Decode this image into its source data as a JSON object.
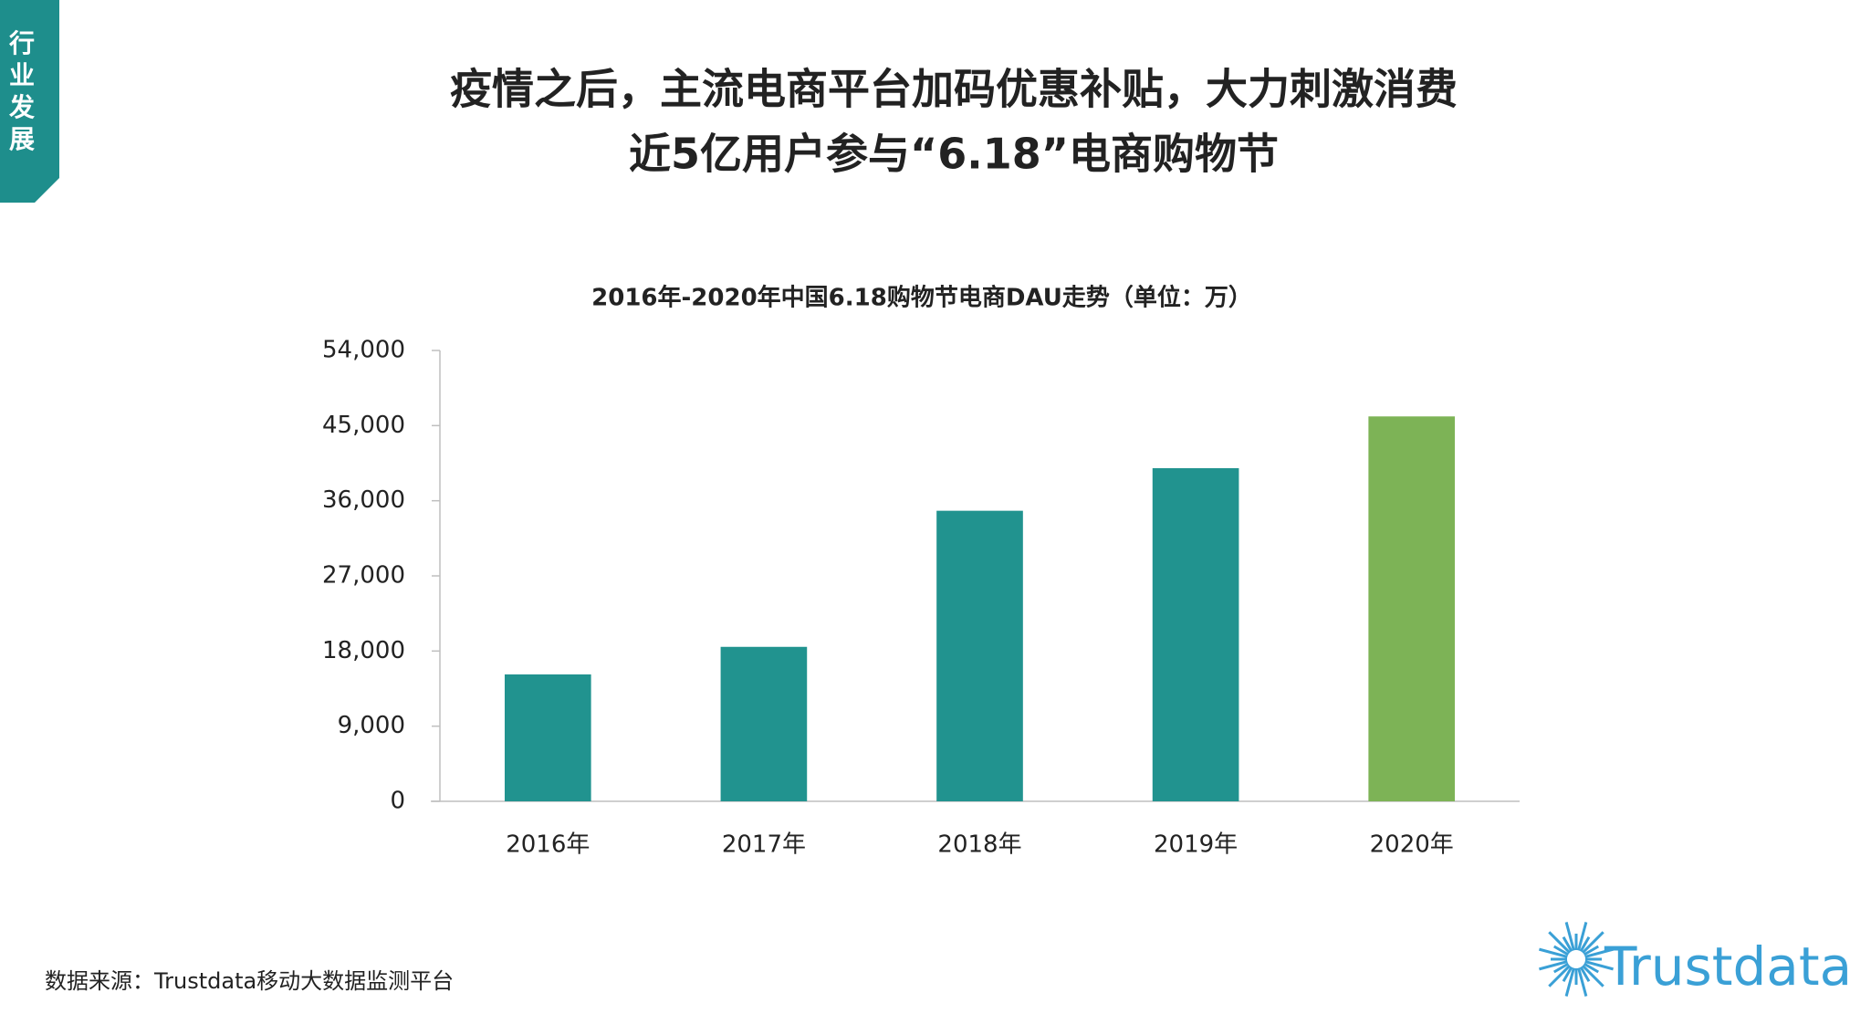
{
  "side_tab": {
    "label": "行业发展"
  },
  "header": {
    "title_line1": "疫情之后，主流电商平台加码优惠补贴，大力刺激消费",
    "title_line2": "近5亿用户参与“6.18”电商购物节"
  },
  "chart_data": {
    "type": "bar",
    "title": "2016年-2020年中国6.18购物节电商DAU走势（单位：万）",
    "categories": [
      "2016年",
      "2017年",
      "2018年",
      "2019年",
      "2020年"
    ],
    "values": [
      15200,
      18500,
      34800,
      39900,
      46100
    ],
    "colors": [
      "#21938f",
      "#21938f",
      "#21938f",
      "#21938f",
      "#7db356"
    ],
    "ylim": [
      0,
      54000
    ],
    "yticks": [
      0,
      {
        "value": 9000,
        "label": "9,000"
      },
      {
        "value": 18000,
        "label": "18,000"
      },
      {
        "value": 27000,
        "label": "27,000"
      },
      {
        "value": 36000,
        "label": "36,000"
      },
      {
        "value": 45000,
        "label": "45,000"
      },
      {
        "value": 54000,
        "label": "54,000"
      }
    ],
    "grid": false
  },
  "source": "数据来源：Trustdata移动大数据监测平台",
  "logo": "Trustdata"
}
